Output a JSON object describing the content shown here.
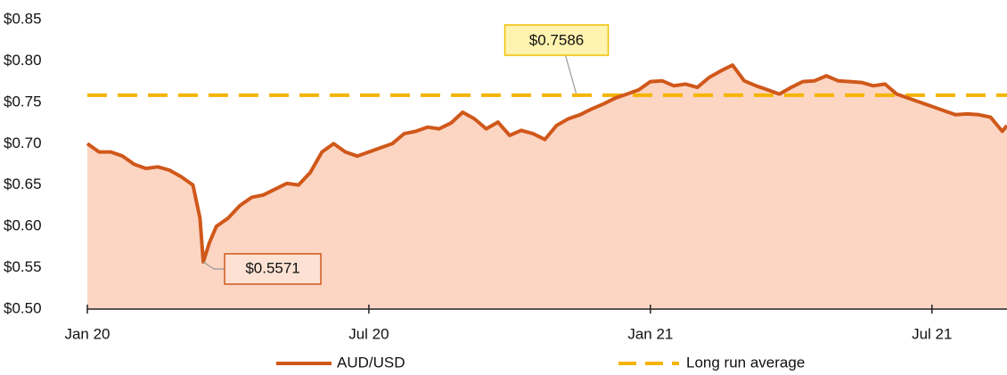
{
  "chart_data": {
    "type": "line",
    "x": [
      0,
      0.25,
      0.5,
      0.75,
      1,
      1.25,
      1.5,
      1.75,
      2,
      2.25,
      2.4,
      2.47,
      2.6,
      2.75,
      3,
      3.25,
      3.5,
      3.75,
      4,
      4.25,
      4.5,
      4.75,
      5,
      5.25,
      5.5,
      5.75,
      6,
      6.25,
      6.5,
      6.75,
      7,
      7.25,
      7.5,
      7.75,
      8,
      8.25,
      8.5,
      8.75,
      9,
      9.25,
      9.5,
      9.75,
      10,
      10.25,
      10.5,
      10.75,
      11,
      11.25,
      11.5,
      11.75,
      12,
      12.25,
      12.5,
      12.75,
      13,
      13.25,
      13.5,
      13.75,
      14,
      14.25,
      14.5,
      14.75,
      15,
      15.25,
      15.5,
      15.75,
      16,
      16.25,
      16.5,
      16.75,
      17,
      17.25,
      17.5,
      17.75,
      18,
      18.25,
      18.5,
      18.75,
      19,
      19.25,
      19.5,
      19.6
    ],
    "series": [
      {
        "name": "AUD/USD",
        "color": "#d0581a",
        "fill": "#fcd5c3",
        "values": [
          0.7,
          0.69,
          0.69,
          0.685,
          0.675,
          0.67,
          0.672,
          0.668,
          0.66,
          0.65,
          0.61,
          0.5571,
          0.58,
          0.6,
          0.61,
          0.625,
          0.635,
          0.638,
          0.645,
          0.652,
          0.65,
          0.665,
          0.69,
          0.7,
          0.69,
          0.685,
          0.69,
          0.695,
          0.7,
          0.712,
          0.715,
          0.72,
          0.718,
          0.725,
          0.738,
          0.73,
          0.718,
          0.726,
          0.71,
          0.716,
          0.712,
          0.705,
          0.722,
          0.73,
          0.735,
          0.742,
          0.748,
          0.755,
          0.76,
          0.765,
          0.775,
          0.776,
          0.77,
          0.772,
          0.768,
          0.78,
          0.788,
          0.795,
          0.776,
          0.77,
          0.765,
          0.76,
          0.768,
          0.775,
          0.776,
          0.782,
          0.776,
          0.775,
          0.774,
          0.77,
          0.772,
          0.76,
          0.755,
          0.75,
          0.745,
          0.74,
          0.735,
          0.736,
          0.735,
          0.732,
          0.715,
          0.722
        ]
      }
    ],
    "reference_line": {
      "name": "Long run average",
      "value": 0.7586,
      "label": "$0.7586",
      "color": "#f5b400",
      "label_x": 10
    },
    "annotations": [
      {
        "x": 2.47,
        "value": 0.5571,
        "label": "$0.5571"
      }
    ],
    "xlim": [
      0,
      19.6
    ],
    "xticks": [
      {
        "value": 0,
        "label": "Jan 20"
      },
      {
        "value": 6,
        "label": "Jul 20"
      },
      {
        "value": 12,
        "label": "Jan 21"
      },
      {
        "value": 18,
        "label": "Jul 21"
      }
    ],
    "ylim": [
      0.5,
      0.85
    ],
    "yticks": [
      {
        "value": 0.5,
        "label": "$0.50"
      },
      {
        "value": 0.55,
        "label": "$0.55"
      },
      {
        "value": 0.6,
        "label": "$0.60"
      },
      {
        "value": 0.65,
        "label": "$0.65"
      },
      {
        "value": 0.7,
        "label": "$0.70"
      },
      {
        "value": 0.75,
        "label": "$0.75"
      },
      {
        "value": 0.8,
        "label": "$0.80"
      },
      {
        "value": 0.85,
        "label": "$0.85"
      }
    ],
    "legend": "bottom"
  }
}
